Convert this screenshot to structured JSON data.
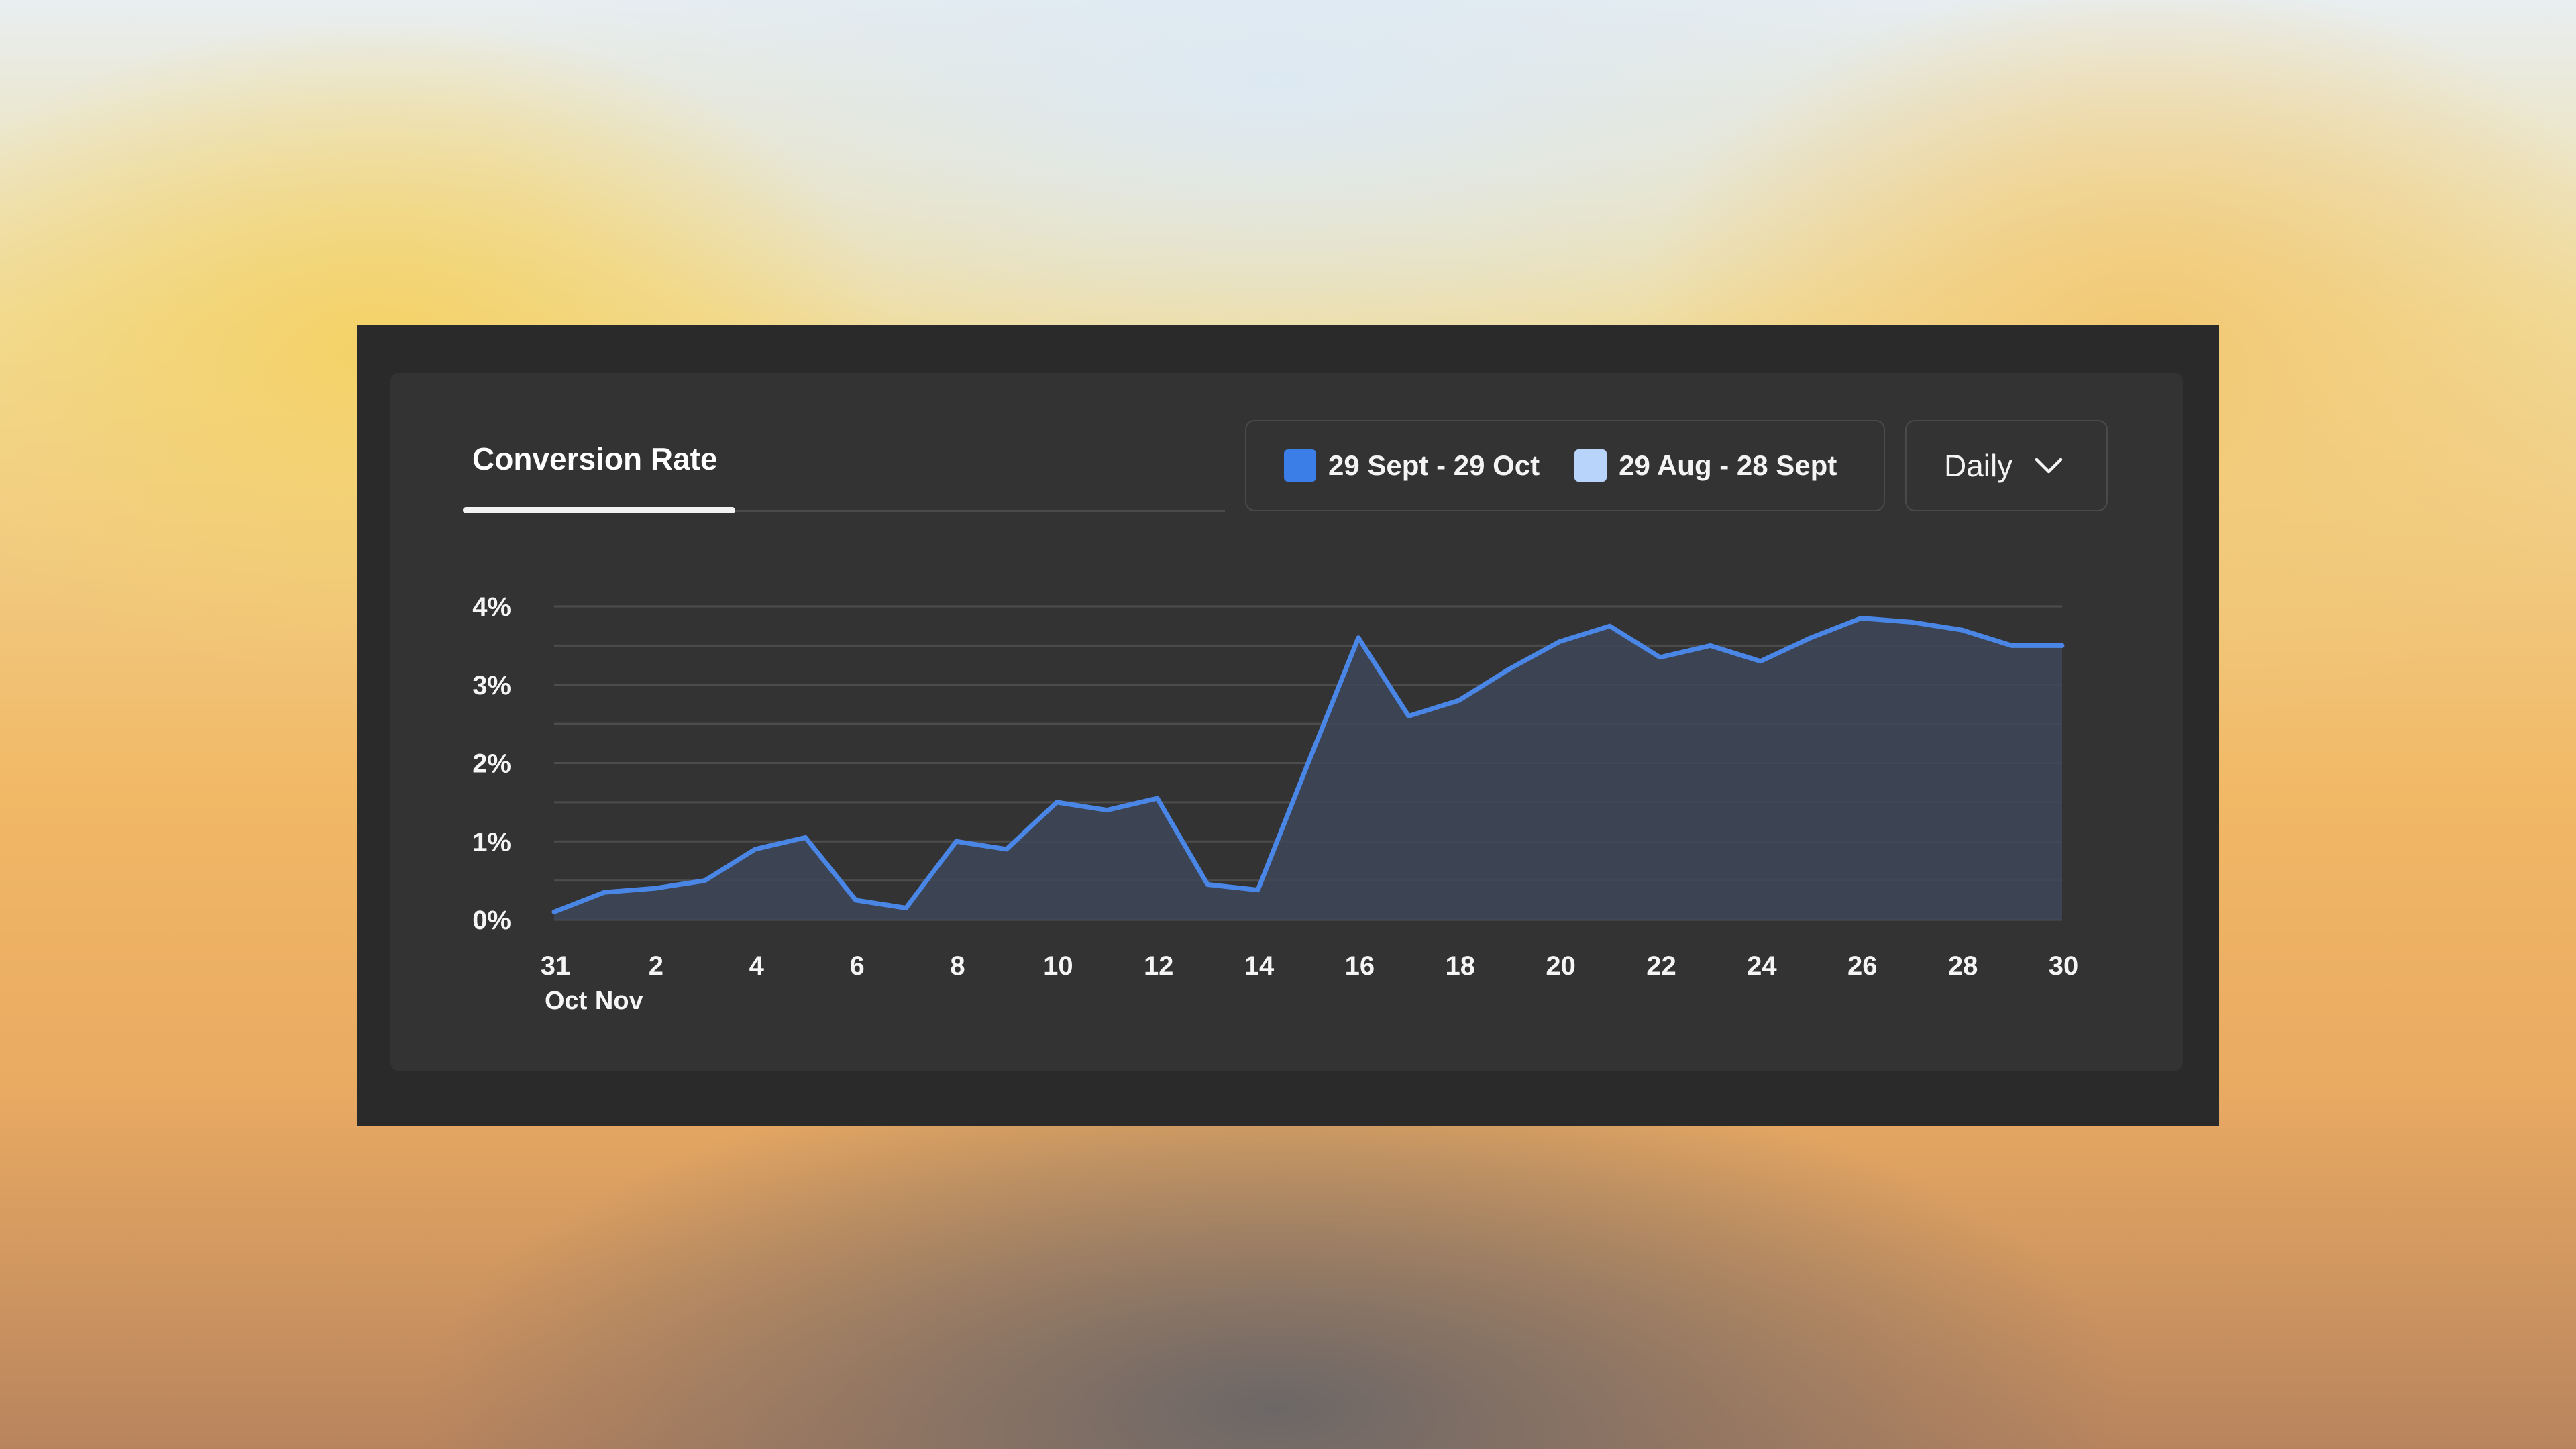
{
  "header": {
    "tab_title": "Conversion Rate",
    "legend": [
      {
        "label": "29 Sept - 29 Oct",
        "color": "#3b7ee8"
      },
      {
        "label": "29 Aug - 28 Sept",
        "color": "#b9d4fb"
      }
    ],
    "dropdown": {
      "label": "Daily",
      "icon": "chevron-down-icon"
    }
  },
  "chart_data": {
    "type": "area",
    "x": [
      "31 Oct",
      "1",
      "2",
      "3",
      "4",
      "5",
      "6",
      "7",
      "8",
      "9",
      "10",
      "11",
      "12",
      "13",
      "14",
      "15",
      "16",
      "17",
      "18",
      "19",
      "20",
      "21",
      "22",
      "23",
      "24",
      "25",
      "26",
      "27",
      "28",
      "29",
      "30"
    ],
    "series": [
      {
        "color": "#4a86e6",
        "values": [
          0.1,
          0.35,
          0.4,
          0.5,
          0.9,
          1.05,
          0.25,
          0.15,
          1.0,
          0.9,
          1.5,
          1.4,
          1.55,
          0.45,
          0.38,
          2.0,
          3.6,
          2.6,
          2.8,
          3.2,
          3.55,
          3.75,
          3.35,
          3.5,
          3.3,
          3.6,
          3.85,
          3.8,
          3.7,
          3.5,
          3.5
        ]
      }
    ],
    "x_tick_labels": [
      "31",
      "2",
      "4",
      "6",
      "8",
      "10",
      "12",
      "14",
      "16",
      "18",
      "20",
      "22",
      "24",
      "26",
      "28",
      "30"
    ],
    "x_month_labels": [
      "Oct",
      "Nov"
    ],
    "y_tick_labels": [
      "0%",
      "1%",
      "2%",
      "3%",
      "4%"
    ],
    "ylim": [
      0,
      4
    ],
    "grid": true,
    "legend_position": "top-right"
  }
}
